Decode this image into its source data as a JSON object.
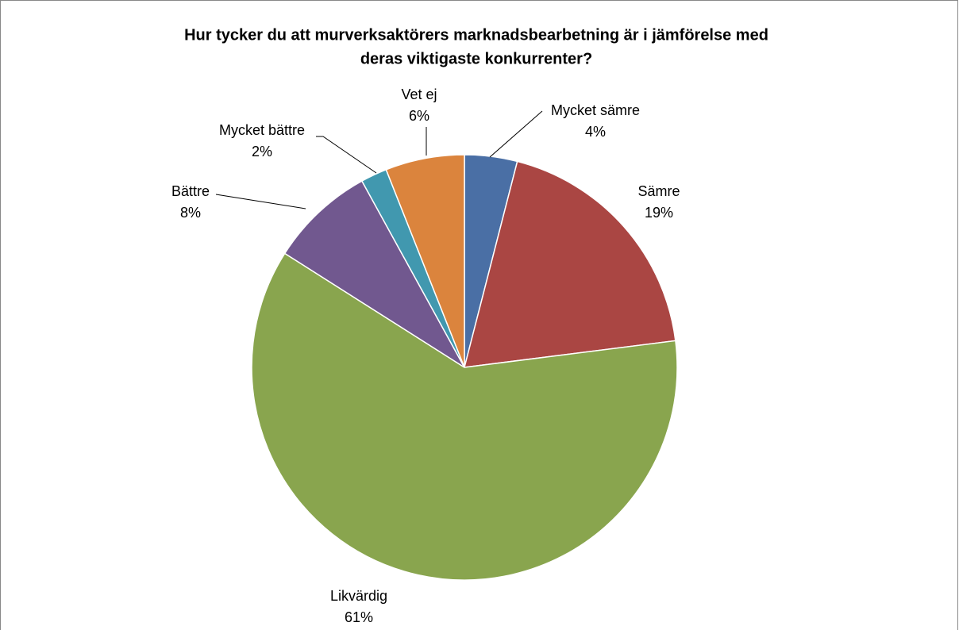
{
  "chart_data": {
    "type": "pie",
    "title": [
      "Hur tycker du att murverksaktörers marknadsbearbetning är i jämförelse med",
      "deras viktigaste konkurrenter?"
    ],
    "categories": [
      "Mycket sämre",
      "Sämre",
      "Likvärdig",
      "Bättre",
      "Mycket bättre",
      "Vet ej"
    ],
    "values": [
      4,
      19,
      61,
      8,
      2,
      6
    ],
    "value_labels": [
      "4%",
      "19%",
      "61%",
      "8%",
      "2%",
      "6%"
    ],
    "colors": [
      "#4a6fa5",
      "#aa4643",
      "#89a54e",
      "#71588f",
      "#4198af",
      "#db843d"
    ]
  }
}
